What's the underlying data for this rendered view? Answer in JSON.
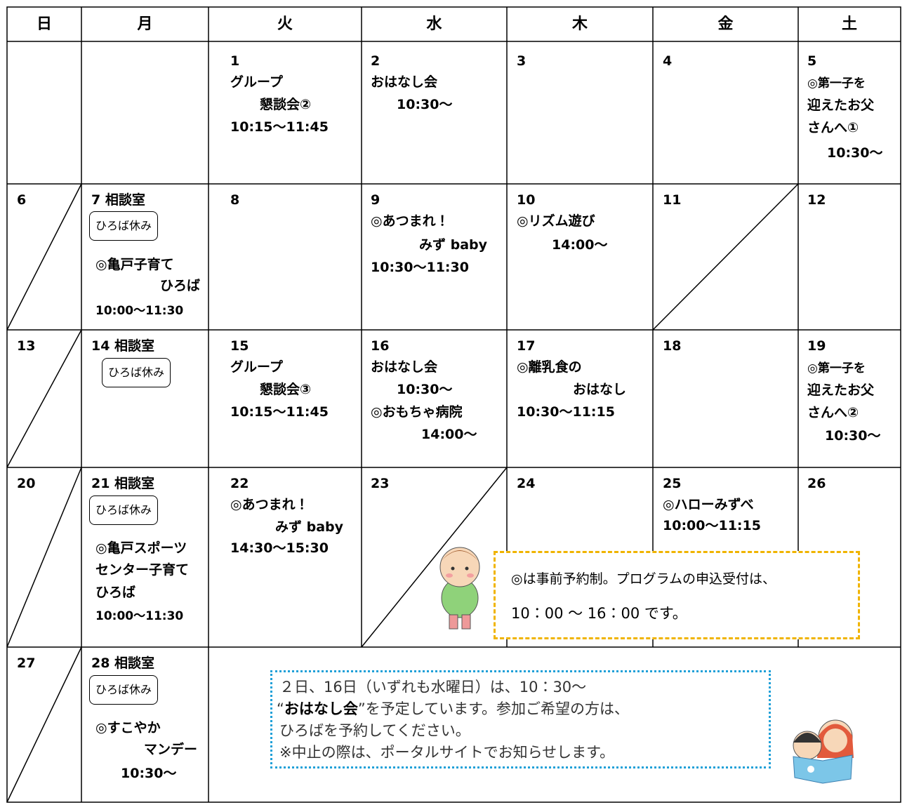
{
  "header": {
    "days": [
      "日",
      "月",
      "火",
      "水",
      "木",
      "金",
      "土"
    ]
  },
  "calendar": {
    "weeks": [
      {
        "cells": [
          {
            "date": "1",
            "lines": [
              "グループ",
              "懇談会②",
              "10:15〜11:45"
            ]
          },
          {
            "date": "2",
            "lines": [
              "おはなし会",
              "10:30〜"
            ]
          },
          {
            "date": "3"
          },
          {
            "date": "4"
          },
          {
            "date": "5",
            "lines": [
              "◎第一子を",
              "迎えたお父",
              "さんへ①",
              "10:30〜"
            ]
          }
        ]
      },
      {
        "cells": [
          {
            "date": "6"
          },
          {
            "date": "7 相談室",
            "badge": "ひろば休み",
            "lines": [
              "◎亀戸子育て",
              "ひろば",
              "10:00〜11:30"
            ]
          },
          {
            "date": "8"
          },
          {
            "date": "9",
            "lines": [
              "◎あつまれ！",
              "みず baby",
              "10:30〜11:30"
            ]
          },
          {
            "date": "10",
            "lines": [
              "◎リズム遊び",
              "14:00〜"
            ]
          },
          {
            "date": "11"
          },
          {
            "date": "12"
          }
        ]
      },
      {
        "cells": [
          {
            "date": "13"
          },
          {
            "date": "14 相談室",
            "badge": "ひろば休み"
          },
          {
            "date": "15",
            "lines": [
              "グループ",
              "懇談会③",
              "10:15〜11:45"
            ]
          },
          {
            "date": "16",
            "lines": [
              "おはなし会",
              "10:30〜",
              "◎おもちゃ病院",
              "14:00〜"
            ]
          },
          {
            "date": "17",
            "lines": [
              "◎離乳食の",
              "おはなし",
              "10:30〜11:15"
            ]
          },
          {
            "date": "18"
          },
          {
            "date": "19",
            "lines": [
              "◎第一子を",
              "迎えたお父",
              "さんへ②",
              "10:30〜"
            ]
          }
        ]
      },
      {
        "cells": [
          {
            "date": "20"
          },
          {
            "date": "21 相談室",
            "badge": "ひろば休み",
            "lines": [
              "◎亀戸スポーツ",
              "センター子育て",
              "ひろば",
              "10:00〜11:30"
            ]
          },
          {
            "date": "22",
            "lines": [
              "◎あつまれ！",
              "みず baby",
              "14:30〜15:30"
            ]
          },
          {
            "date": "23"
          },
          {
            "date": "24"
          },
          {
            "date": "25",
            "lines": [
              "◎ハローみずべ",
              "10:00〜11:15"
            ]
          },
          {
            "date": "26"
          }
        ]
      },
      {
        "cells": [
          {
            "date": "27"
          },
          {
            "date": "28 相談室",
            "badge": "ひろば休み",
            "lines": [
              "◎すこやか",
              "マンデー",
              "10:30〜"
            ]
          }
        ]
      }
    ]
  },
  "notes": {
    "reservation": [
      "◎は事前予約制。プログラムの申込受付は、",
      "10：00 ～ 16：00 です。"
    ],
    "storytime": {
      "line1": "２日、16日（いずれも水曜日）は、10：30～",
      "line2": [
        "“",
        "おはなし会",
        "”を予定しています。参加ご希望の方は、"
      ],
      "line3": "ひろばを予約してください。",
      "line4": "※中止の際は、ポータルサイトでお知らせします。"
    }
  }
}
